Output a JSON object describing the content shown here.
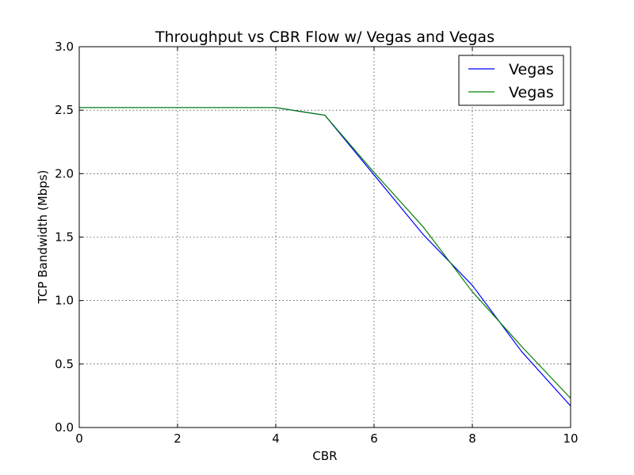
{
  "chart_data": {
    "type": "line",
    "title": "Throughput vs CBR Flow w/ Vegas and Vegas",
    "xlabel": "CBR",
    "ylabel": "TCP Bandwidth (Mbps)",
    "xlim": [
      0,
      10
    ],
    "ylim": [
      0,
      3.0
    ],
    "xticks": [
      0,
      2,
      4,
      6,
      8,
      10
    ],
    "xtick_labels": [
      "0",
      "2",
      "4",
      "6",
      "8",
      "10"
    ],
    "yticks": [
      0,
      0.5,
      1.0,
      1.5,
      2.0,
      2.5,
      3.0
    ],
    "ytick_labels": [
      "0.0",
      "0.5",
      "1.0",
      "1.5",
      "2.0",
      "2.5",
      "3.0"
    ],
    "grid": true,
    "legend_position": "top-right",
    "x": [
      0,
      1,
      2,
      3,
      4,
      5,
      6,
      7,
      8,
      9,
      10
    ],
    "series": [
      {
        "name": "Vegas",
        "color": "#0000ff",
        "values": [
          2.52,
          2.52,
          2.52,
          2.52,
          2.52,
          2.46,
          1.99,
          1.52,
          1.12,
          0.6,
          0.17
        ]
      },
      {
        "name": "Vegas",
        "color": "#008000",
        "values": [
          2.52,
          2.52,
          2.52,
          2.52,
          2.52,
          2.46,
          2.01,
          1.58,
          1.07,
          0.64,
          0.23
        ]
      }
    ]
  }
}
